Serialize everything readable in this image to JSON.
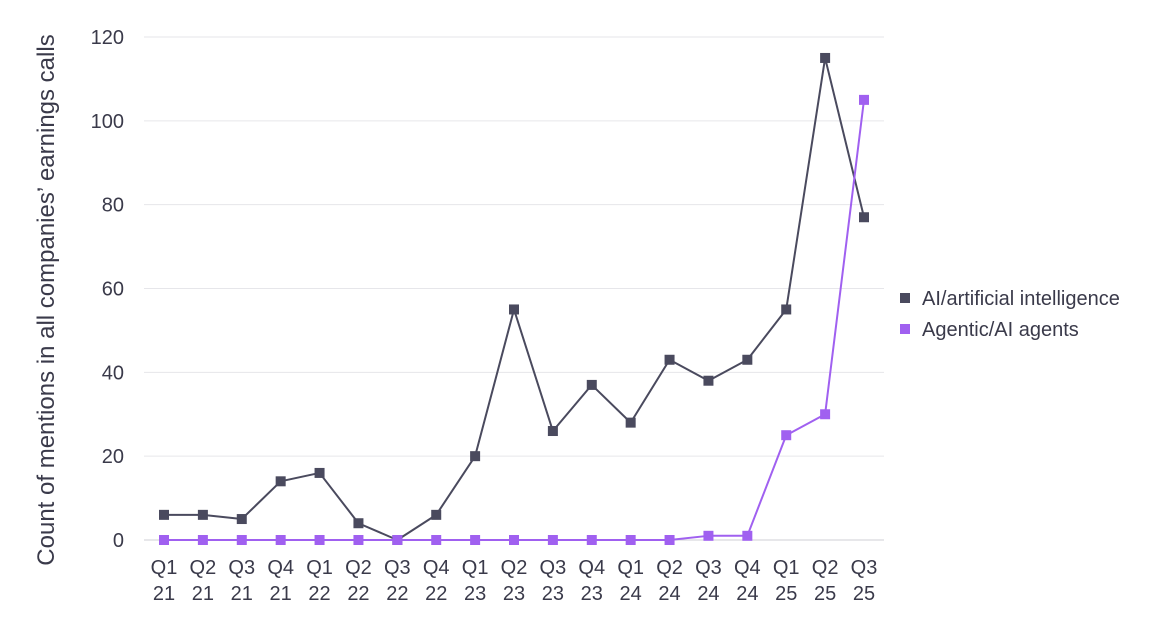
{
  "chart_data": {
    "type": "line",
    "categories": [
      [
        "Q1",
        "21"
      ],
      [
        "Q2",
        "21"
      ],
      [
        "Q3",
        "21"
      ],
      [
        "Q4",
        "21"
      ],
      [
        "Q1",
        "22"
      ],
      [
        "Q2",
        "22"
      ],
      [
        "Q3",
        "22"
      ],
      [
        "Q4",
        "22"
      ],
      [
        "Q1",
        "23"
      ],
      [
        "Q2",
        "23"
      ],
      [
        "Q3",
        "23"
      ],
      [
        "Q4",
        "23"
      ],
      [
        "Q1",
        "24"
      ],
      [
        "Q2",
        "24"
      ],
      [
        "Q3",
        "24"
      ],
      [
        "Q4",
        "24"
      ],
      [
        "Q1",
        "25"
      ],
      [
        "Q2",
        "25"
      ],
      [
        "Q3",
        "25"
      ]
    ],
    "series": [
      {
        "name": "AI/artificial intelligence",
        "color": "#4a4a5e",
        "values": [
          6,
          6,
          5,
          14,
          16,
          4,
          0,
          6,
          20,
          55,
          26,
          37,
          28,
          43,
          38,
          43,
          55,
          115,
          77
        ]
      },
      {
        "name": "Agentic/AI agents",
        "color": "#a060f0",
        "values": [
          0,
          0,
          0,
          0,
          0,
          0,
          0,
          0,
          0,
          0,
          0,
          0,
          0,
          0,
          1,
          1,
          25,
          30,
          105
        ]
      }
    ],
    "ylabel": "Count of mentions in all companies’ earnings calls",
    "xlabel": "",
    "ylim": [
      0,
      120
    ],
    "yticks": [
      0,
      20,
      40,
      60,
      80,
      100,
      120
    ],
    "grid": true,
    "legend_position": "right"
  }
}
